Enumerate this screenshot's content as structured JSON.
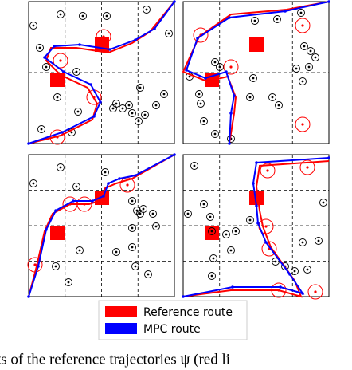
{
  "figure": {
    "legend": [
      {
        "label": "Reference route",
        "color": "#ff0000"
      },
      {
        "label": "MPC route",
        "color": "#0000ff"
      }
    ]
  },
  "caption": "ts of the reference trajectories ψ (red li"
}
